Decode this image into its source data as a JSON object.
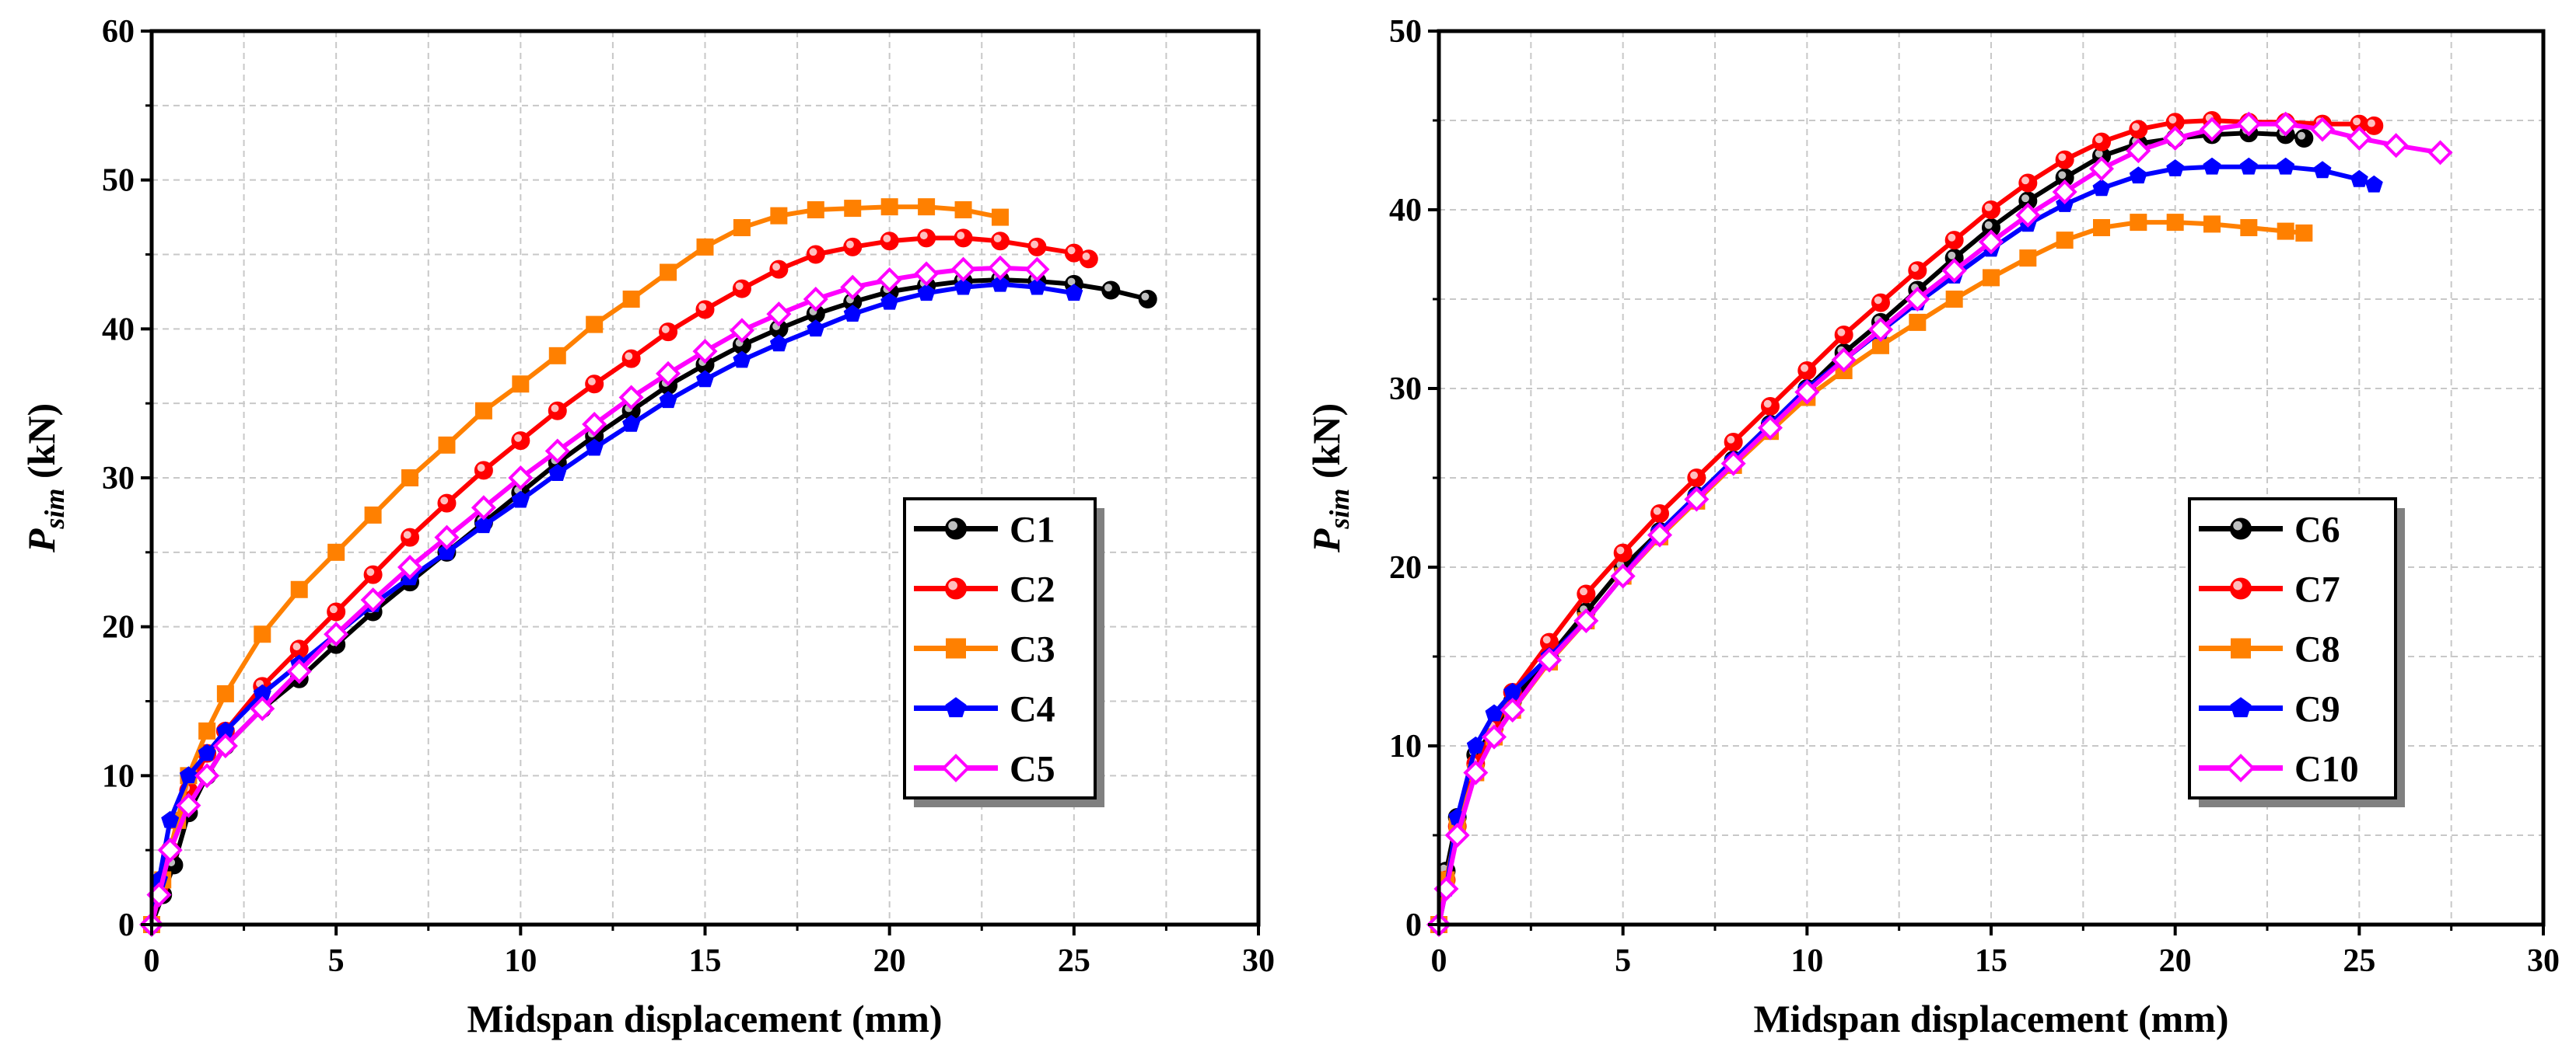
{
  "figure": {
    "panels": [
      {
        "xlabel": "Midspan displacement (mm)",
        "ylabel_main": "P",
        "ylabel_sub": "sim",
        "ylabel_unit": " (kN)"
      },
      {
        "xlabel": "Midspan displacement (mm)",
        "ylabel_main": "P",
        "ylabel_sub": "sim",
        "ylabel_unit": " (kN)"
      }
    ]
  },
  "chart_data": [
    {
      "type": "line",
      "xlabel": "Midspan displacement (mm)",
      "ylabel": "Psim (kN)",
      "xlim": [
        0,
        30
      ],
      "ylim": [
        0,
        60
      ],
      "xticks": [
        0,
        5,
        10,
        15,
        20,
        25,
        30
      ],
      "yticks": [
        0,
        10,
        20,
        30,
        40,
        50,
        60
      ],
      "grid": true,
      "legend_position": "right",
      "series": [
        {
          "name": "C1",
          "color": "#000000",
          "marker": "circle",
          "x": [
            0,
            0.3,
            0.6,
            1,
            1.5,
            2,
            3,
            4,
            5,
            6,
            7,
            8,
            9,
            10,
            11,
            12,
            13,
            14,
            15,
            16,
            17,
            18,
            19,
            20,
            21,
            22,
            23,
            24,
            25,
            26,
            27
          ],
          "y": [
            0,
            2,
            4,
            7.5,
            10,
            12,
            14.5,
            16.5,
            18.8,
            21,
            23,
            25,
            27,
            29,
            31,
            32.8,
            34.5,
            36.2,
            37.6,
            38.9,
            40,
            41,
            41.8,
            42.5,
            42.9,
            43.2,
            43.3,
            43.2,
            43,
            42.6,
            42
          ]
        },
        {
          "name": "C2",
          "color": "#ff0000",
          "marker": "circle",
          "x": [
            0,
            0.2,
            0.5,
            1,
            1.5,
            2,
            3,
            4,
            5,
            6,
            7,
            8,
            9,
            10,
            11,
            12,
            13,
            14,
            15,
            16,
            17,
            18,
            19,
            20,
            21,
            22,
            23,
            24,
            25,
            25.4
          ],
          "y": [
            0,
            2.5,
            5,
            9,
            11.5,
            13,
            16,
            18.5,
            21,
            23.5,
            26,
            28.3,
            30.5,
            32.5,
            34.5,
            36.3,
            38,
            39.8,
            41.3,
            42.7,
            44,
            45,
            45.5,
            45.9,
            46.1,
            46.1,
            45.9,
            45.5,
            45.1,
            44.7
          ]
        },
        {
          "name": "C3",
          "color": "#ff8000",
          "marker": "square",
          "x": [
            0,
            0.3,
            0.7,
            1,
            1.5,
            2,
            3,
            4,
            5,
            6,
            7,
            8,
            9,
            10,
            11,
            12,
            13,
            14,
            15,
            16,
            17,
            18,
            19,
            20,
            21,
            22,
            23
          ],
          "y": [
            0,
            3,
            7,
            10,
            13,
            15.5,
            19.5,
            22.5,
            25,
            27.5,
            30,
            32.2,
            34.5,
            36.3,
            38.2,
            40.3,
            42,
            43.8,
            45.5,
            46.8,
            47.6,
            48,
            48.1,
            48.2,
            48.2,
            48,
            47.5
          ]
        },
        {
          "name": "C4",
          "color": "#0000ff",
          "marker": "pentagon",
          "x": [
            0,
            0.2,
            0.5,
            1,
            1.5,
            2,
            3,
            4,
            5,
            6,
            7,
            8,
            9,
            10,
            11,
            12,
            13,
            14,
            15,
            16,
            17,
            18,
            19,
            20,
            21,
            22,
            23,
            24,
            25
          ],
          "y": [
            0,
            3,
            7,
            10,
            11.5,
            13,
            15.5,
            17.5,
            19.5,
            21.5,
            23.3,
            25,
            26.8,
            28.5,
            30.3,
            32,
            33.6,
            35.2,
            36.6,
            37.9,
            39,
            40,
            41,
            41.8,
            42.4,
            42.8,
            43,
            42.8,
            42.4
          ]
        },
        {
          "name": "C5",
          "color": "#ff00ff",
          "marker": "diamond",
          "x": [
            0,
            0.2,
            0.5,
            1,
            1.5,
            2,
            3,
            4,
            5,
            6,
            7,
            8,
            9,
            10,
            11,
            12,
            13,
            14,
            15,
            16,
            17,
            18,
            19,
            20,
            21,
            22,
            23,
            24
          ],
          "y": [
            0,
            2,
            5,
            8,
            10,
            12,
            14.5,
            17,
            19.5,
            21.8,
            24,
            26,
            28,
            30,
            31.8,
            33.6,
            35.4,
            37,
            38.5,
            39.9,
            41,
            42,
            42.8,
            43.3,
            43.7,
            44,
            44.1,
            44
          ]
        }
      ]
    },
    {
      "type": "line",
      "xlabel": "Midspan displacement (mm)",
      "ylabel": "Psim (kN)",
      "xlim": [
        0,
        30
      ],
      "ylim": [
        0,
        50
      ],
      "xticks": [
        0,
        5,
        10,
        15,
        20,
        25,
        30
      ],
      "yticks": [
        0,
        10,
        20,
        30,
        40,
        50
      ],
      "grid": true,
      "legend_position": "right",
      "series": [
        {
          "name": "C6",
          "color": "#000000",
          "marker": "circle",
          "x": [
            0,
            0.2,
            0.5,
            1,
            1.5,
            2,
            3,
            4,
            5,
            6,
            7,
            8,
            9,
            10,
            11,
            12,
            13,
            14,
            15,
            16,
            17,
            18,
            19,
            20,
            21,
            22,
            23,
            23.5
          ],
          "y": [
            0,
            3,
            6,
            9.5,
            11,
            12.5,
            15,
            17.5,
            20,
            22,
            24,
            26,
            28,
            30,
            32,
            33.7,
            35.5,
            37.3,
            39,
            40.5,
            41.8,
            43,
            43.7,
            44,
            44.2,
            44.3,
            44.2,
            44
          ]
        },
        {
          "name": "C7",
          "color": "#ff0000",
          "marker": "circle",
          "x": [
            0,
            0.2,
            0.5,
            1,
            1.5,
            2,
            3,
            4,
            5,
            6,
            7,
            8,
            9,
            10,
            11,
            12,
            13,
            14,
            15,
            16,
            17,
            18,
            19,
            20,
            21,
            22,
            23,
            24,
            25,
            25.4
          ],
          "y": [
            0,
            2.5,
            5.5,
            9,
            11,
            13,
            15.8,
            18.5,
            20.8,
            23,
            25,
            27,
            29,
            31,
            33,
            34.8,
            36.6,
            38.3,
            40,
            41.5,
            42.8,
            43.8,
            44.5,
            44.9,
            45,
            44.9,
            44.9,
            44.8,
            44.8,
            44.7
          ]
        },
        {
          "name": "C8",
          "color": "#ff8000",
          "marker": "square",
          "x": [
            0,
            0.2,
            0.5,
            1,
            1.5,
            2,
            3,
            4,
            5,
            6,
            7,
            8,
            9,
            10,
            11,
            12,
            13,
            14,
            15,
            16,
            17,
            18,
            19,
            20,
            21,
            22,
            23,
            23.5
          ],
          "y": [
            0,
            2.5,
            5.5,
            8.5,
            10.5,
            12,
            14.7,
            17,
            19.5,
            21.7,
            23.7,
            25.7,
            27.6,
            29.5,
            31,
            32.4,
            33.7,
            35,
            36.2,
            37.3,
            38.3,
            39,
            39.3,
            39.3,
            39.2,
            39,
            38.8,
            38.7
          ]
        },
        {
          "name": "C9",
          "color": "#0000ff",
          "marker": "pentagon",
          "x": [
            0,
            0.2,
            0.5,
            1,
            1.5,
            2,
            3,
            4,
            5,
            6,
            7,
            8,
            9,
            10,
            11,
            12,
            13,
            14,
            15,
            16,
            17,
            18,
            19,
            20,
            21,
            22,
            23,
            24,
            25,
            25.4
          ],
          "y": [
            0,
            2,
            6,
            10,
            11.8,
            13,
            15,
            17,
            19.5,
            22,
            24,
            26,
            28,
            30,
            31.6,
            33.2,
            34.8,
            36.3,
            37.8,
            39.2,
            40.3,
            41.2,
            41.9,
            42.3,
            42.4,
            42.4,
            42.4,
            42.2,
            41.7,
            41.4
          ]
        },
        {
          "name": "C10",
          "color": "#ff00ff",
          "marker": "diamond",
          "x": [
            0,
            0.2,
            0.5,
            1,
            1.5,
            2,
            3,
            4,
            5,
            6,
            7,
            8,
            9,
            10,
            11,
            12,
            13,
            14,
            15,
            16,
            17,
            18,
            19,
            20,
            21,
            22,
            23,
            24,
            25,
            26,
            27.2
          ],
          "y": [
            0,
            2,
            5,
            8.5,
            10.5,
            12,
            14.8,
            17,
            19.5,
            21.8,
            23.8,
            25.8,
            27.8,
            29.8,
            31.6,
            33.3,
            35,
            36.6,
            38.2,
            39.7,
            41,
            42.3,
            43.3,
            44,
            44.5,
            44.8,
            44.8,
            44.5,
            44,
            43.6,
            43.2
          ]
        }
      ]
    }
  ]
}
